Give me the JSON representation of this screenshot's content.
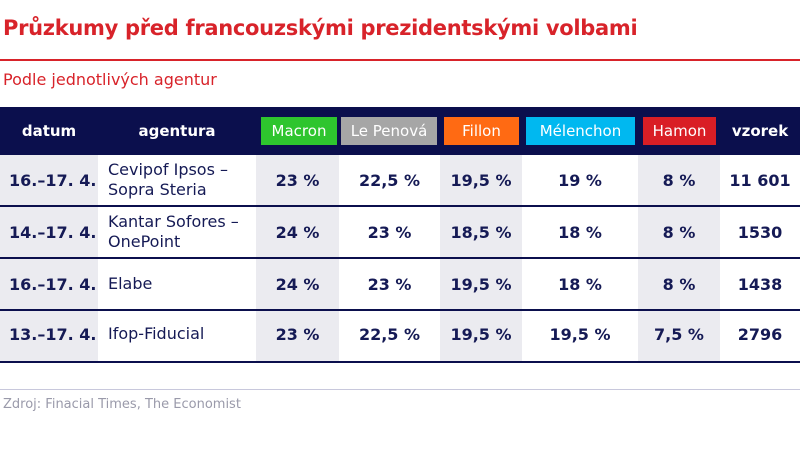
{
  "title": "Průzkumy před francouzskými prezidentskými volbami",
  "subtitle": "Podle jednotlivých agentur",
  "source": "Zdroj: Finacial Times, The Economist",
  "colors": {
    "header_bg": "#0b0f4d",
    "title": "#d8232a",
    "shaded_column": "#ebebf0"
  },
  "chart_data": {
    "type": "table",
    "columns": [
      {
        "label": "datum"
      },
      {
        "label": "agentura"
      },
      {
        "label": "Macron",
        "color": "#2ec52e"
      },
      {
        "label": "Le Penová",
        "color": "#a6a6a6"
      },
      {
        "label": "Fillon",
        "color": "#ff6a13"
      },
      {
        "label": "Mélenchon",
        "color": "#00b8f0"
      },
      {
        "label": "Hamon",
        "color": "#d91e25"
      },
      {
        "label": "vzorek"
      }
    ],
    "rows": [
      [
        "16.–17. 4.",
        "Cevipof Ipsos – Sopra Steria",
        "23 %",
        "22,5 %",
        "19,5 %",
        "19 %",
        "8 %",
        "11 601"
      ],
      [
        "14.–17. 4.",
        "Kantar Sofores – OnePoint",
        "24 %",
        "23 %",
        "18,5 %",
        "18 %",
        "8 %",
        "1530"
      ],
      [
        "16.–17. 4.",
        "Elabe",
        "24 %",
        "23 %",
        "19,5 %",
        "18 %",
        "8 %",
        "1438"
      ],
      [
        "13.–17. 4.",
        "Ifop-Fiducial",
        "23 %",
        "22,5 %",
        "19,5 %",
        "19,5 %",
        "7,5 %",
        "2796"
      ]
    ]
  }
}
